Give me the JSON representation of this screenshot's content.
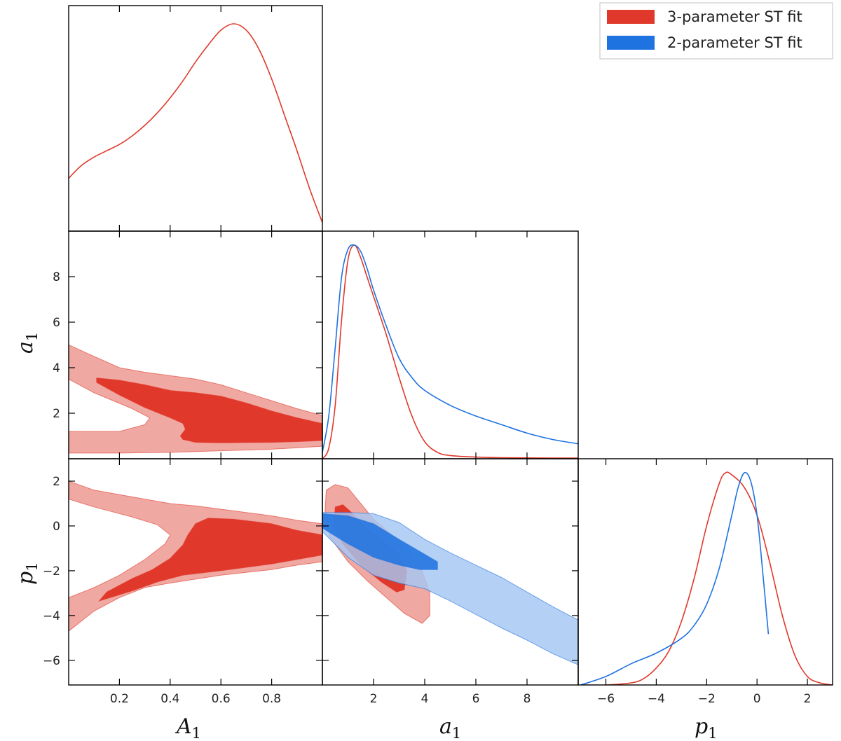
{
  "chart_data": {
    "type": "corner",
    "title": "",
    "parameters": [
      {
        "symbol": "A",
        "subscript": "1",
        "range": [
          0.0,
          1.0
        ],
        "ticks": [
          0.2,
          0.4,
          0.6,
          0.8
        ],
        "tick_labels": [
          "0.2",
          "0.4",
          "0.6",
          "0.8"
        ]
      },
      {
        "symbol": "a",
        "subscript": "1",
        "range": [
          0.0,
          10.0
        ],
        "ticks": [
          2,
          4,
          6,
          8
        ],
        "tick_labels": [
          "2",
          "4",
          "6",
          "8"
        ]
      },
      {
        "symbol": "p",
        "subscript": "1",
        "range": [
          -7.1,
          3.0
        ],
        "ticks": [
          -6,
          -4,
          -2,
          0,
          2
        ],
        "tick_labels": [
          "−6",
          "−4",
          "−2",
          "0",
          "2"
        ]
      }
    ],
    "series": [
      {
        "name": "3-parameter ST fit",
        "color": "#e0392b",
        "light_color": "#f0a9a2"
      },
      {
        "name": "2-parameter ST fit",
        "color": "#1f73e0",
        "light_color": "#a5c6f3"
      }
    ],
    "marginals": [
      {
        "param": "A1",
        "series": "3-parameter ST fit",
        "x": [
          0.0,
          0.05,
          0.1,
          0.15,
          0.2,
          0.25,
          0.3,
          0.35,
          0.4,
          0.45,
          0.5,
          0.55,
          0.6,
          0.65,
          0.7,
          0.75,
          0.8,
          0.85,
          0.9,
          0.95,
          1.0
        ],
        "y": [
          0.25,
          0.31,
          0.35,
          0.38,
          0.41,
          0.45,
          0.5,
          0.56,
          0.63,
          0.71,
          0.8,
          0.88,
          0.95,
          0.98,
          0.95,
          0.86,
          0.72,
          0.55,
          0.38,
          0.2,
          0.04
        ]
      },
      {
        "param": "a1",
        "series": "3-parameter ST fit",
        "x": [
          0.0,
          0.25,
          0.5,
          0.75,
          1.0,
          1.25,
          1.5,
          1.75,
          2.0,
          2.5,
          3.0,
          3.5,
          4.0,
          4.5,
          5.0,
          6.0,
          7.0,
          8.0,
          9.0,
          10.0
        ],
        "y": [
          0.0,
          0.05,
          0.25,
          0.65,
          0.93,
          1.0,
          0.94,
          0.85,
          0.76,
          0.58,
          0.38,
          0.2,
          0.08,
          0.03,
          0.015,
          0.008,
          0.005,
          0.004,
          0.003,
          0.003
        ]
      },
      {
        "param": "a1",
        "series": "2-parameter ST fit",
        "x": [
          0.0,
          0.25,
          0.5,
          0.75,
          1.0,
          1.25,
          1.5,
          1.75,
          2.0,
          2.5,
          3.0,
          3.5,
          4.0,
          5.0,
          6.0,
          7.0,
          8.0,
          9.0,
          10.0
        ],
        "y": [
          0.03,
          0.2,
          0.52,
          0.85,
          0.98,
          1.0,
          0.97,
          0.89,
          0.79,
          0.62,
          0.47,
          0.38,
          0.32,
          0.25,
          0.2,
          0.16,
          0.12,
          0.09,
          0.07
        ]
      },
      {
        "param": "p1",
        "series": "3-parameter ST fit",
        "x": [
          -7.0,
          -6.0,
          -5.0,
          -4.5,
          -4.0,
          -3.5,
          -3.0,
          -2.5,
          -2.0,
          -1.5,
          -1.25,
          -1.0,
          -0.5,
          0.0,
          0.5,
          1.0,
          1.5,
          2.0,
          2.5,
          3.0
        ],
        "y": [
          0.0,
          0.0,
          0.01,
          0.03,
          0.08,
          0.16,
          0.3,
          0.5,
          0.75,
          0.95,
          1.0,
          0.99,
          0.93,
          0.8,
          0.58,
          0.33,
          0.14,
          0.04,
          0.01,
          0.0
        ]
      },
      {
        "param": "p1",
        "series": "2-parameter ST fit",
        "x": [
          -7.0,
          -6.0,
          -5.0,
          -4.0,
          -3.0,
          -2.5,
          -2.0,
          -1.5,
          -1.0,
          -0.75,
          -0.5,
          -0.25,
          0.0,
          0.25,
          0.45
        ],
        "y": [
          0.0,
          0.04,
          0.1,
          0.15,
          0.22,
          0.28,
          0.38,
          0.55,
          0.8,
          0.93,
          1.0,
          0.96,
          0.8,
          0.5,
          0.24
        ]
      }
    ],
    "contours": [
      {
        "x_param": "A1",
        "y_param": "a1",
        "series": "3-parameter ST fit",
        "level": "95%",
        "points": [
          [
            0.0,
            5.0
          ],
          [
            0.1,
            4.5
          ],
          [
            0.2,
            4.0
          ],
          [
            0.3,
            3.8
          ],
          [
            0.4,
            3.65
          ],
          [
            0.5,
            3.5
          ],
          [
            0.6,
            3.25
          ],
          [
            0.7,
            2.9
          ],
          [
            0.8,
            2.55
          ],
          [
            0.9,
            2.2
          ],
          [
            1.0,
            1.9
          ],
          [
            1.0,
            0.55
          ],
          [
            0.9,
            0.48
          ],
          [
            0.8,
            0.42
          ],
          [
            0.6,
            0.35
          ],
          [
            0.4,
            0.28
          ],
          [
            0.2,
            0.25
          ],
          [
            0.0,
            0.25
          ],
          [
            0.0,
            1.2
          ],
          [
            0.2,
            1.2
          ],
          [
            0.3,
            1.5
          ],
          [
            0.32,
            1.8
          ],
          [
            0.25,
            2.2
          ],
          [
            0.1,
            2.9
          ],
          [
            0.0,
            3.5
          ]
        ]
      },
      {
        "x_param": "A1",
        "y_param": "a1",
        "series": "3-parameter ST fit",
        "level": "68%",
        "points": [
          [
            0.11,
            3.55
          ],
          [
            0.2,
            3.45
          ],
          [
            0.3,
            3.25
          ],
          [
            0.4,
            3.0
          ],
          [
            0.5,
            2.9
          ],
          [
            0.6,
            2.75
          ],
          [
            0.7,
            2.45
          ],
          [
            0.8,
            2.1
          ],
          [
            0.9,
            1.8
          ],
          [
            1.0,
            1.55
          ],
          [
            1.0,
            0.8
          ],
          [
            0.9,
            0.75
          ],
          [
            0.8,
            0.72
          ],
          [
            0.6,
            0.7
          ],
          [
            0.5,
            0.72
          ],
          [
            0.45,
            0.85
          ],
          [
            0.44,
            1.0
          ],
          [
            0.46,
            1.3
          ],
          [
            0.45,
            1.55
          ],
          [
            0.4,
            1.8
          ],
          [
            0.3,
            2.25
          ],
          [
            0.2,
            2.8
          ],
          [
            0.11,
            3.35
          ]
        ]
      },
      {
        "x_param": "A1",
        "y_param": "p1",
        "series": "3-parameter ST fit",
        "level": "95%",
        "points": [
          [
            0.0,
            2.0
          ],
          [
            0.1,
            1.6
          ],
          [
            0.2,
            1.4
          ],
          [
            0.3,
            1.2
          ],
          [
            0.4,
            1.0
          ],
          [
            0.5,
            0.9
          ],
          [
            0.6,
            0.75
          ],
          [
            0.7,
            0.6
          ],
          [
            0.8,
            0.45
          ],
          [
            0.9,
            0.25
          ],
          [
            1.0,
            0.1
          ],
          [
            1.0,
            -1.6
          ],
          [
            0.9,
            -1.75
          ],
          [
            0.8,
            -1.95
          ],
          [
            0.6,
            -2.2
          ],
          [
            0.4,
            -2.55
          ],
          [
            0.3,
            -2.75
          ],
          [
            0.2,
            -3.2
          ],
          [
            0.1,
            -3.8
          ],
          [
            0.0,
            -4.7
          ],
          [
            0.0,
            -3.2
          ],
          [
            0.1,
            -2.75
          ],
          [
            0.2,
            -2.2
          ],
          [
            0.3,
            -1.5
          ],
          [
            0.38,
            -0.8
          ],
          [
            0.4,
            -0.4
          ],
          [
            0.35,
            0.05
          ],
          [
            0.25,
            0.4
          ],
          [
            0.1,
            0.85
          ],
          [
            0.0,
            1.2
          ]
        ]
      },
      {
        "x_param": "A1",
        "y_param": "p1",
        "series": "3-parameter ST fit",
        "level": "68%",
        "points": [
          [
            0.12,
            -3.35
          ],
          [
            0.25,
            -2.9
          ],
          [
            0.35,
            -2.5
          ],
          [
            0.45,
            -2.2
          ],
          [
            0.6,
            -2.0
          ],
          [
            0.8,
            -1.7
          ],
          [
            1.0,
            -1.3
          ],
          [
            1.0,
            -0.4
          ],
          [
            0.9,
            -0.2
          ],
          [
            0.8,
            0.1
          ],
          [
            0.65,
            0.3
          ],
          [
            0.55,
            0.35
          ],
          [
            0.5,
            0.1
          ],
          [
            0.47,
            -0.4
          ],
          [
            0.45,
            -0.85
          ],
          [
            0.4,
            -1.45
          ],
          [
            0.33,
            -1.95
          ],
          [
            0.25,
            -2.35
          ],
          [
            0.15,
            -2.95
          ]
        ]
      },
      {
        "x_param": "a1",
        "y_param": "p1",
        "series": "3-parameter ST fit",
        "level": "95%",
        "points": [
          [
            0.15,
            1.6
          ],
          [
            0.5,
            1.85
          ],
          [
            1.0,
            1.7
          ],
          [
            1.5,
            1.0
          ],
          [
            2.0,
            0.3
          ],
          [
            2.6,
            -0.3
          ],
          [
            3.2,
            -0.9
          ],
          [
            3.8,
            -1.7
          ],
          [
            4.2,
            -3.0
          ],
          [
            4.2,
            -4.0
          ],
          [
            3.9,
            -4.35
          ],
          [
            3.2,
            -3.9
          ],
          [
            2.5,
            -3.2
          ],
          [
            1.8,
            -2.5
          ],
          [
            1.0,
            -1.6
          ],
          [
            0.3,
            -0.5
          ],
          [
            0.1,
            0.5
          ]
        ]
      },
      {
        "x_param": "a1",
        "y_param": "p1",
        "series": "3-parameter ST fit",
        "level": "68%",
        "points": [
          [
            0.5,
            0.85
          ],
          [
            0.8,
            0.95
          ],
          [
            1.1,
            0.65
          ],
          [
            1.6,
            0.0
          ],
          [
            2.3,
            -0.6
          ],
          [
            3.0,
            -1.3
          ],
          [
            3.3,
            -2.0
          ],
          [
            3.2,
            -2.85
          ],
          [
            2.9,
            -2.95
          ],
          [
            2.3,
            -2.5
          ],
          [
            1.5,
            -1.75
          ],
          [
            0.8,
            -0.8
          ],
          [
            0.45,
            0.0
          ]
        ]
      },
      {
        "x_param": "a1",
        "y_param": "p1",
        "series": "2-parameter ST fit",
        "level": "95%",
        "points": [
          [
            0.0,
            0.6
          ],
          [
            1.0,
            0.6
          ],
          [
            2.0,
            0.55
          ],
          [
            3.0,
            0.15
          ],
          [
            4.0,
            -0.6
          ],
          [
            5.0,
            -1.2
          ],
          [
            6.0,
            -1.75
          ],
          [
            7.0,
            -2.3
          ],
          [
            8.0,
            -2.95
          ],
          [
            9.0,
            -3.6
          ],
          [
            10.0,
            -4.2
          ],
          [
            10.0,
            -6.2
          ],
          [
            9.0,
            -5.7
          ],
          [
            8.0,
            -5.1
          ],
          [
            7.0,
            -4.55
          ],
          [
            6.0,
            -3.95
          ],
          [
            5.0,
            -3.35
          ],
          [
            4.0,
            -2.8
          ],
          [
            3.0,
            -2.55
          ],
          [
            2.0,
            -2.2
          ],
          [
            1.0,
            -1.4
          ],
          [
            0.0,
            -0.25
          ]
        ]
      },
      {
        "x_param": "a1",
        "y_param": "p1",
        "series": "2-parameter ST fit",
        "level": "68%",
        "points": [
          [
            0.0,
            0.55
          ],
          [
            1.0,
            0.45
          ],
          [
            2.0,
            0.1
          ],
          [
            3.0,
            -0.6
          ],
          [
            3.9,
            -1.2
          ],
          [
            4.5,
            -1.6
          ],
          [
            4.5,
            -1.95
          ],
          [
            3.8,
            -1.95
          ],
          [
            3.0,
            -1.75
          ],
          [
            2.0,
            -1.4
          ],
          [
            1.0,
            -0.8
          ],
          [
            0.0,
            -0.1
          ]
        ]
      }
    ]
  }
}
